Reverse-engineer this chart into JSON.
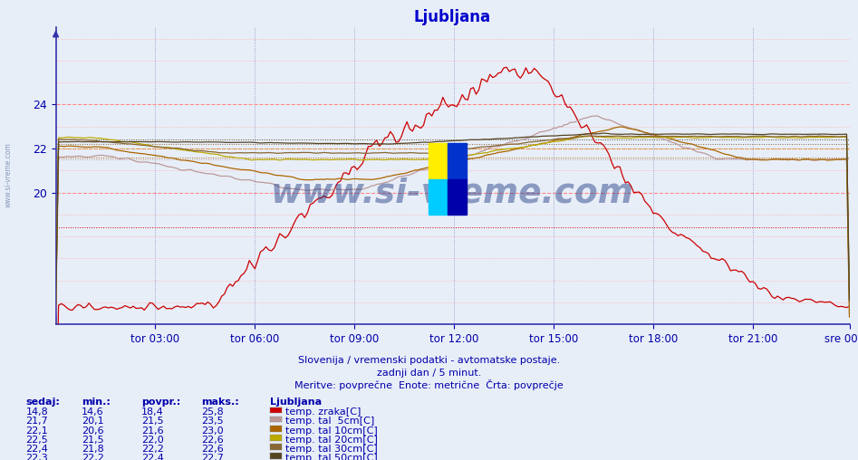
{
  "title": "Ljubljana",
  "subtitle1": "Slovenija / vremenski podatki - avtomatske postaje.",
  "subtitle2": "zadnji dan / 5 minut.",
  "subtitle3": "Meritve: povprečne  Enote: metrične  Črta: povprečje",
  "xtick_labels": [
    "tor 03:00",
    "tor 06:00",
    "tor 09:00",
    "tor 12:00",
    "tor 15:00",
    "tor 18:00",
    "tor 21:00",
    "sre 00:00"
  ],
  "ytick_vals": [
    20,
    22,
    24
  ],
  "ylim": [
    14.0,
    27.5
  ],
  "xlim_min": 0,
  "xlim_max": 287,
  "bg_color": "#e8eef8",
  "plot_bg_color": "#e8eef8",
  "title_color": "#0000cc",
  "text_color": "#0000aa",
  "axis_color": "#3333aa",
  "grid_h_color": "#ff8888",
  "grid_v_color": "#aaaacc",
  "watermark": "www.si-vreme.com",
  "watermark_color": "#1a3580",
  "series": [
    {
      "label": "temp. zraka[C]",
      "color": "#cc0000",
      "avg": 18.4
    },
    {
      "label": "temp. tal  5cm[C]",
      "color": "#bb9999",
      "avg": 21.5
    },
    {
      "label": "temp. tal 10cm[C]",
      "color": "#aa6600",
      "avg": 21.6
    },
    {
      "label": "temp. tal 20cm[C]",
      "color": "#bbaa00",
      "avg": 22.0
    },
    {
      "label": "temp. tal 30cm[C]",
      "color": "#886633",
      "avg": 22.2
    },
    {
      "label": "temp. tal 50cm[C]",
      "color": "#554422",
      "avg": 22.4
    }
  ],
  "table_headers": [
    "sedaj:",
    "min.:",
    "povpr.:",
    "maks.:",
    "Ljubljana"
  ],
  "table_rows": [
    [
      "14,8",
      "14,6",
      "18,4",
      "25,8"
    ],
    [
      "21,7",
      "20,1",
      "21,5",
      "23,5"
    ],
    [
      "22,1",
      "20,6",
      "21,6",
      "23,0"
    ],
    [
      "22,5",
      "21,5",
      "22,0",
      "22,6"
    ],
    [
      "22,4",
      "21,8",
      "22,2",
      "22,6"
    ],
    [
      "22,3",
      "22,2",
      "22,4",
      "22,7"
    ]
  ]
}
